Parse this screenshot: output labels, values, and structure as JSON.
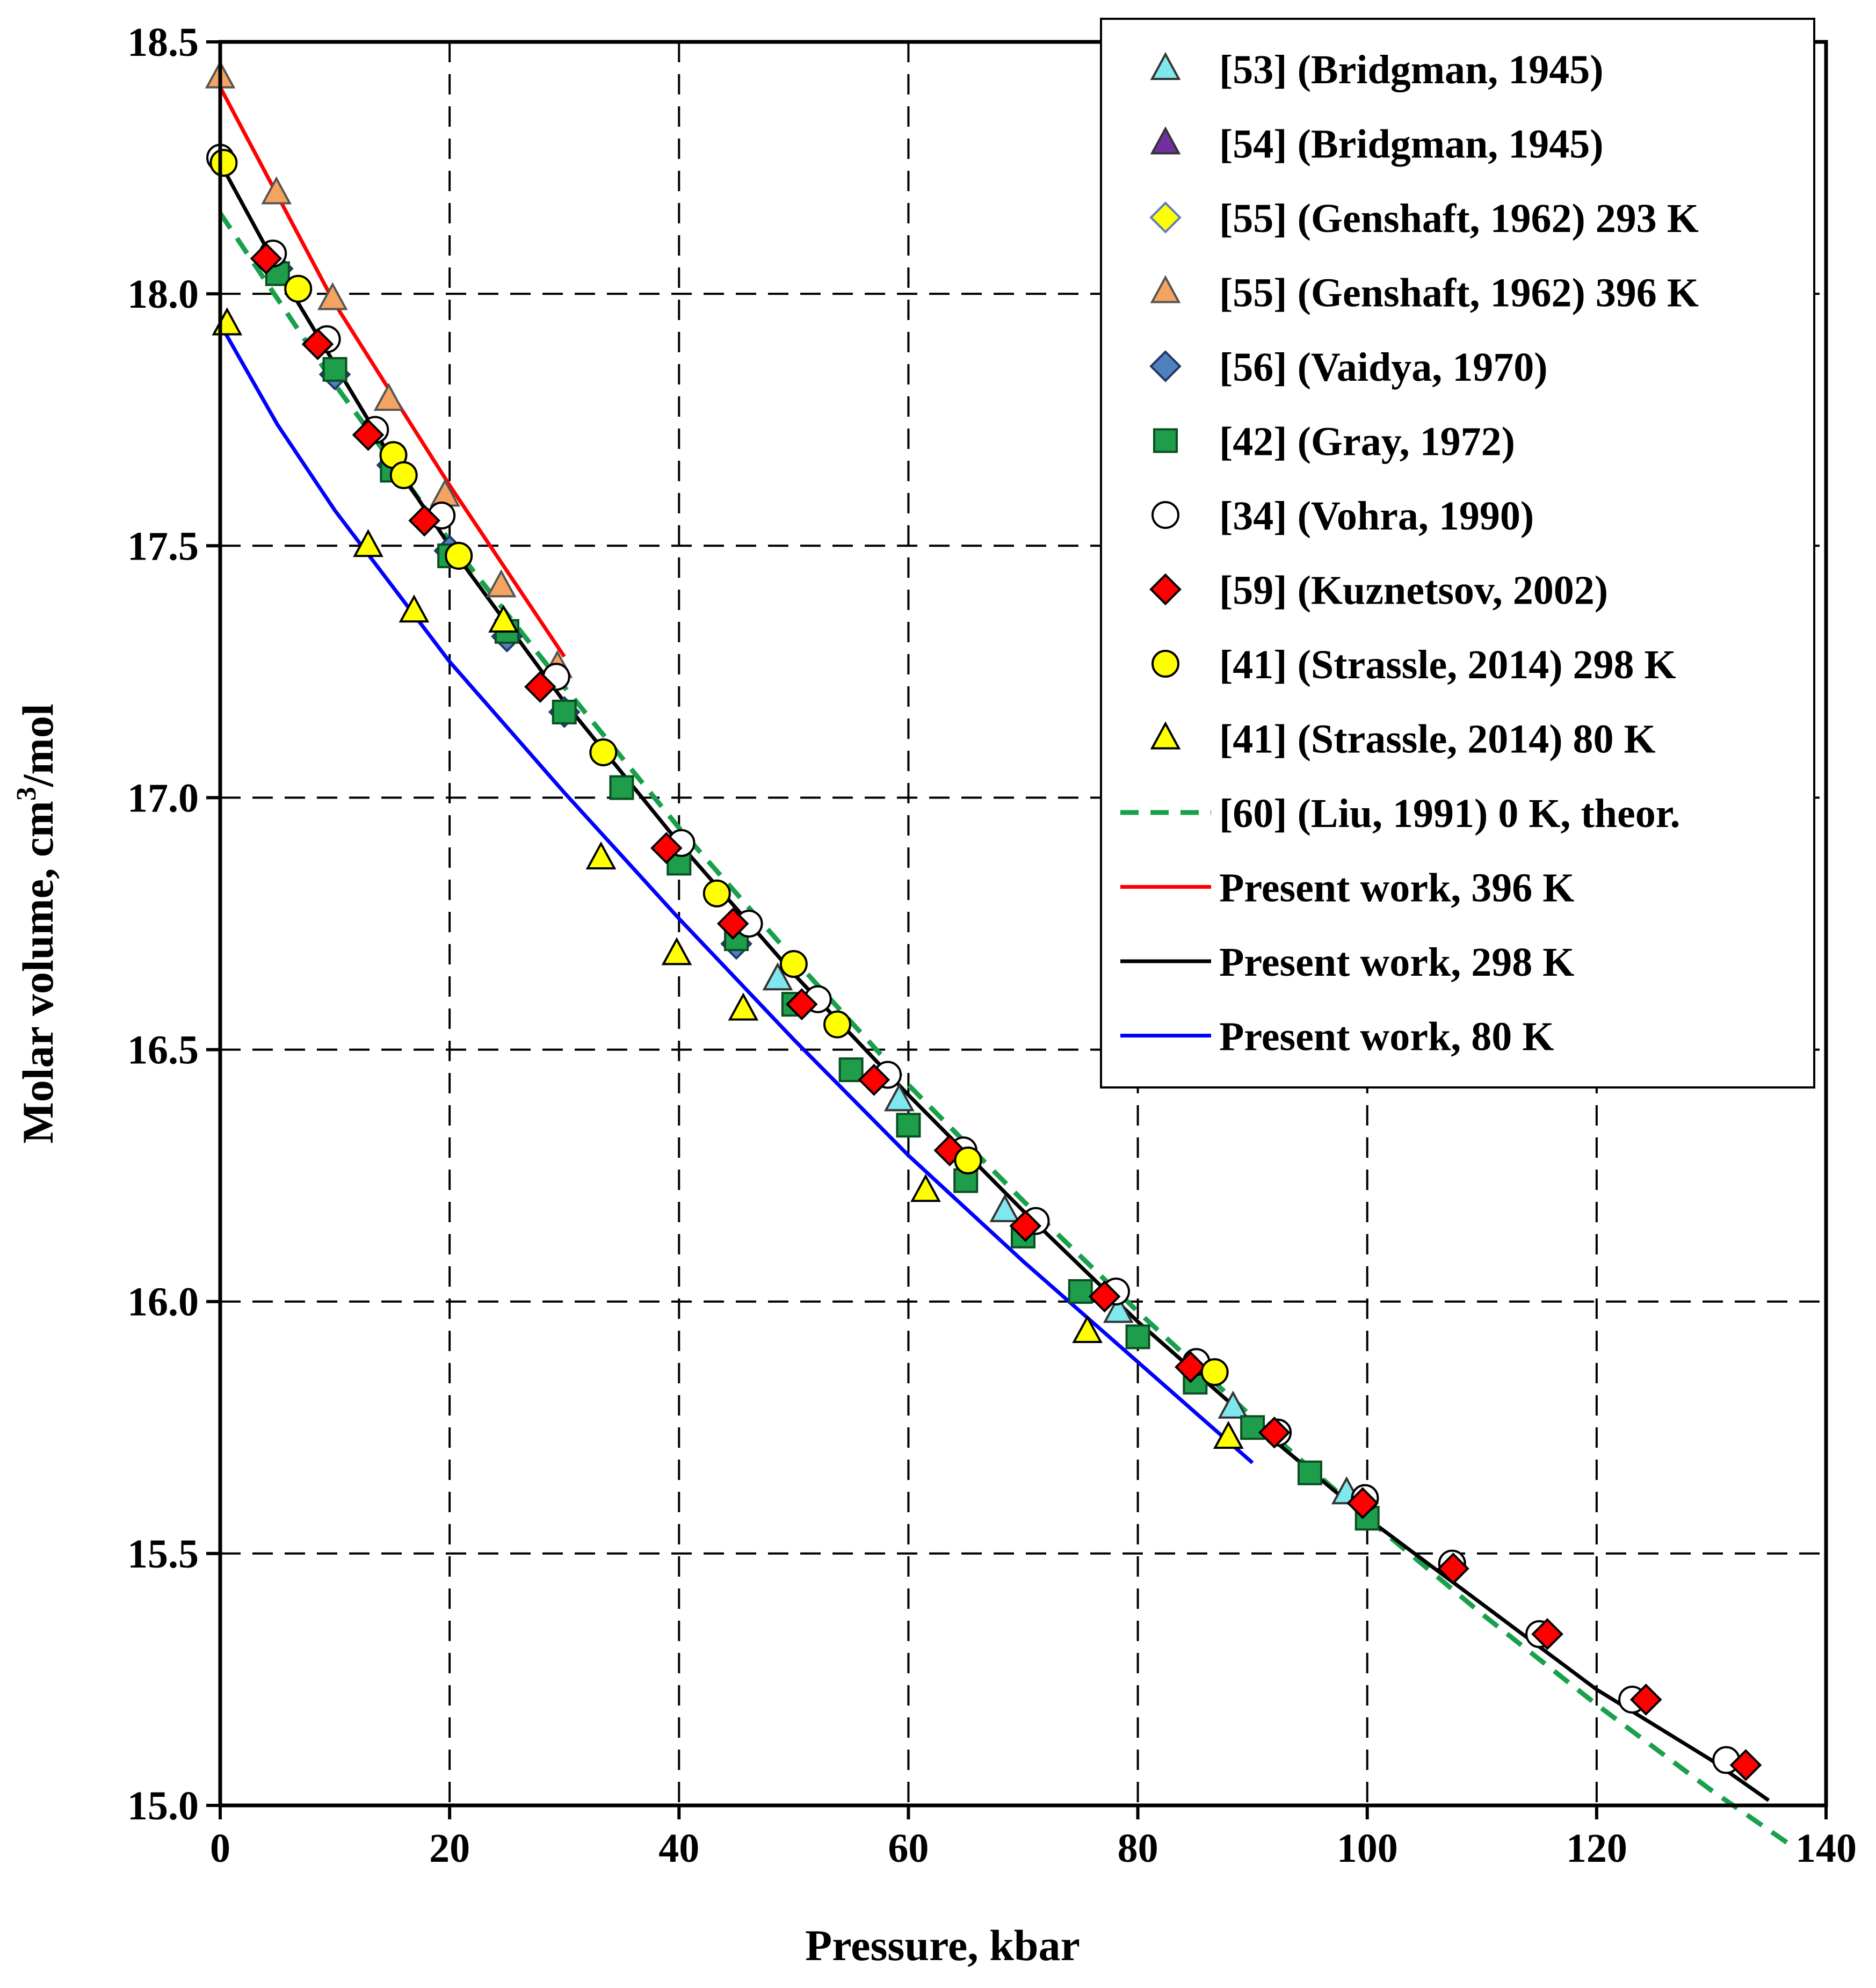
{
  "chart_data": {
    "type": "scatter",
    "xlabel": "Pressure,  kbar",
    "ylabel": "Molar volume,  cm3/mol",
    "ylabel_parts": {
      "main": "Molar volume,  cm",
      "sup": "3",
      "tail": "/mol"
    },
    "xlim": [
      0,
      140
    ],
    "ylim": [
      15.0,
      18.5
    ],
    "xticks": [
      0,
      20,
      40,
      60,
      80,
      100,
      120,
      140
    ],
    "yticks": [
      15.0,
      15.5,
      16.0,
      16.5,
      17.0,
      17.5,
      18.0,
      18.5
    ],
    "xtick_labels": [
      "0",
      "20",
      "40",
      "60",
      "80",
      "100",
      "120",
      "140"
    ],
    "ytick_labels": [
      "15.0",
      "15.5",
      "16.0",
      "16.5",
      "17.0",
      "17.5",
      "18.0",
      "18.5"
    ],
    "grid": true,
    "legend_position": "top-right",
    "series": [
      {
        "name": "[53] (Bridgman, 1945)",
        "marker": "triangle",
        "color": "#7fe8ee",
        "stroke": "#333333",
        "points": [
          [
            48.6,
            16.64
          ],
          [
            59.2,
            16.4
          ],
          [
            68.4,
            16.18
          ],
          [
            78.3,
            15.98
          ],
          [
            88.3,
            15.79
          ],
          [
            98.2,
            15.62
          ]
        ]
      },
      {
        "name": "[54] (Bridgman, 1945)",
        "marker": "triangle",
        "color": "#7030a0",
        "stroke": "#333333",
        "points": []
      },
      {
        "name": "[55] (Genshaft, 1962) 293 K",
        "marker": "diamond",
        "color": "#ffff00",
        "stroke": "#5b7fc6",
        "points": []
      },
      {
        "name": "[55] (Genshaft, 1962) 396 K",
        "marker": "triangle",
        "color": "#f4a460",
        "stroke": "#555555",
        "points": [
          [
            0,
            18.43
          ],
          [
            4.9,
            18.2
          ],
          [
            9.8,
            17.99
          ],
          [
            14.7,
            17.79
          ],
          [
            19.6,
            17.6
          ],
          [
            24.5,
            17.42
          ],
          [
            29.4,
            17.26
          ]
        ]
      },
      {
        "name": "[56] (Vaidya, 1970)",
        "marker": "diamond",
        "color": "#4f81bd",
        "stroke": "#1f3864",
        "points": [
          [
            5,
            18.05
          ],
          [
            10,
            17.84
          ],
          [
            15,
            17.66
          ],
          [
            20,
            17.49
          ],
          [
            25,
            17.32
          ],
          [
            30,
            17.17
          ],
          [
            45,
            16.71
          ]
        ]
      },
      {
        "name": "[42] (Gray, 1972)",
        "marker": "square",
        "color": "#1e9e4a",
        "stroke": "#0b4d22",
        "points": [
          [
            5,
            18.04
          ],
          [
            10,
            17.85
          ],
          [
            15,
            17.65
          ],
          [
            20,
            17.48
          ],
          [
            25,
            17.33
          ],
          [
            30,
            17.17
          ],
          [
            35,
            17.02
          ],
          [
            40,
            16.87
          ],
          [
            45,
            16.72
          ],
          [
            50,
            16.59
          ],
          [
            55,
            16.46
          ],
          [
            60,
            16.35
          ],
          [
            65,
            16.24
          ],
          [
            70,
            16.13
          ],
          [
            75,
            16.02
          ],
          [
            80,
            15.93
          ],
          [
            85,
            15.84
          ],
          [
            90,
            15.75
          ],
          [
            95,
            15.66
          ],
          [
            100,
            15.57
          ]
        ]
      },
      {
        "name": "[34] (Vohra, 1990)",
        "marker": "circle",
        "color": "#ffffff",
        "stroke": "#000000",
        "points": [
          [
            0,
            18.27
          ],
          [
            4.6,
            18.08
          ],
          [
            9.3,
            17.91
          ],
          [
            13.5,
            17.73
          ],
          [
            19.3,
            17.56
          ],
          [
            29.3,
            17.24
          ],
          [
            40.2,
            16.91
          ],
          [
            46.1,
            16.75
          ],
          [
            52.1,
            16.6
          ],
          [
            58.2,
            16.45
          ],
          [
            64.8,
            16.3
          ],
          [
            71.1,
            16.16
          ],
          [
            78.1,
            16.02
          ],
          [
            85.1,
            15.88
          ],
          [
            92.2,
            15.74
          ],
          [
            99.8,
            15.61
          ],
          [
            107.4,
            15.48
          ],
          [
            115.0,
            15.34
          ],
          [
            123.1,
            15.21
          ],
          [
            131.3,
            15.09
          ]
        ]
      },
      {
        "name": "[59] (Kuznetsov, 2002)",
        "marker": "diamond",
        "color": "#ff0000",
        "stroke": "#000000",
        "points": [
          [
            4.0,
            18.07
          ],
          [
            8.5,
            17.9
          ],
          [
            12.9,
            17.72
          ],
          [
            17.8,
            17.55
          ],
          [
            27.9,
            17.22
          ],
          [
            38.9,
            16.9
          ],
          [
            44.7,
            16.75
          ],
          [
            50.7,
            16.59
          ],
          [
            57.0,
            16.44
          ],
          [
            63.6,
            16.3
          ],
          [
            70.2,
            16.15
          ],
          [
            77.1,
            16.01
          ],
          [
            84.6,
            15.87
          ],
          [
            91.9,
            15.74
          ],
          [
            99.6,
            15.6
          ],
          [
            107.5,
            15.47
          ],
          [
            115.7,
            15.34
          ],
          [
            124.3,
            15.21
          ],
          [
            133.0,
            15.08
          ]
        ]
      },
      {
        "name": "[41] (Strassle, 2014) 298 K",
        "marker": "circle",
        "color": "#ffff00",
        "stroke": "#000000",
        "points": [
          [
            0.3,
            18.26
          ],
          [
            6.8,
            18.01
          ],
          [
            15.1,
            17.68
          ],
          [
            16.0,
            17.64
          ],
          [
            20.8,
            17.48
          ],
          [
            33.4,
            17.09
          ],
          [
            43.3,
            16.81
          ],
          [
            50.0,
            16.67
          ],
          [
            53.8,
            16.55
          ],
          [
            65.2,
            16.28
          ],
          [
            86.7,
            15.86
          ]
        ]
      },
      {
        "name": "[41] (Strassle, 2014) 80 K",
        "marker": "triangle",
        "color": "#ffff00",
        "stroke": "#000000",
        "points": [
          [
            0.6,
            17.94
          ],
          [
            12.9,
            17.5
          ],
          [
            16.9,
            17.37
          ],
          [
            24.7,
            17.35
          ],
          [
            33.2,
            16.88
          ],
          [
            39.8,
            16.69
          ],
          [
            45.6,
            16.58
          ],
          [
            61.5,
            16.22
          ],
          [
            75.6,
            15.94
          ],
          [
            87.9,
            15.73
          ]
        ]
      },
      {
        "name": "[60] (Liu, 1991) 0 K, theor.",
        "marker": "line-dashed",
        "color": "#18a04b",
        "points": [
          [
            0,
            18.16
          ],
          [
            10,
            17.82
          ],
          [
            20,
            17.51
          ],
          [
            30,
            17.22
          ],
          [
            40,
            16.94
          ],
          [
            50,
            16.68
          ],
          [
            60,
            16.43
          ],
          [
            70,
            16.2
          ],
          [
            80,
            15.98
          ],
          [
            90,
            15.77
          ],
          [
            100,
            15.57
          ],
          [
            110,
            15.38
          ],
          [
            120,
            15.2
          ],
          [
            130,
            15.03
          ],
          [
            137,
            14.92
          ]
        ]
      },
      {
        "name": "Present work, 396 K",
        "marker": "line",
        "color": "#ff0000",
        "points": [
          [
            0,
            18.41
          ],
          [
            10,
            17.98
          ],
          [
            20,
            17.62
          ],
          [
            30,
            17.28
          ]
        ]
      },
      {
        "name": "Present work, 298 K",
        "marker": "line",
        "color": "#000000",
        "points": [
          [
            0,
            18.26
          ],
          [
            5,
            18.05
          ],
          [
            10,
            17.86
          ],
          [
            15,
            17.67
          ],
          [
            20,
            17.5
          ],
          [
            30,
            17.19
          ],
          [
            40,
            16.91
          ],
          [
            50,
            16.65
          ],
          [
            60,
            16.41
          ],
          [
            70,
            16.18
          ],
          [
            80,
            15.96
          ],
          [
            90,
            15.76
          ],
          [
            100,
            15.57
          ],
          [
            110,
            15.4
          ],
          [
            120,
            15.23
          ],
          [
            130,
            15.09
          ],
          [
            135,
            15.01
          ]
        ]
      },
      {
        "name": "Present work, 80 K",
        "marker": "line",
        "color": "#0000ff",
        "points": [
          [
            0,
            17.94
          ],
          [
            5,
            17.74
          ],
          [
            10,
            17.57
          ],
          [
            20,
            17.27
          ],
          [
            30,
            17.01
          ],
          [
            40,
            16.76
          ],
          [
            50,
            16.52
          ],
          [
            60,
            16.29
          ],
          [
            70,
            16.08
          ],
          [
            80,
            15.88
          ],
          [
            90,
            15.68
          ]
        ]
      }
    ]
  }
}
